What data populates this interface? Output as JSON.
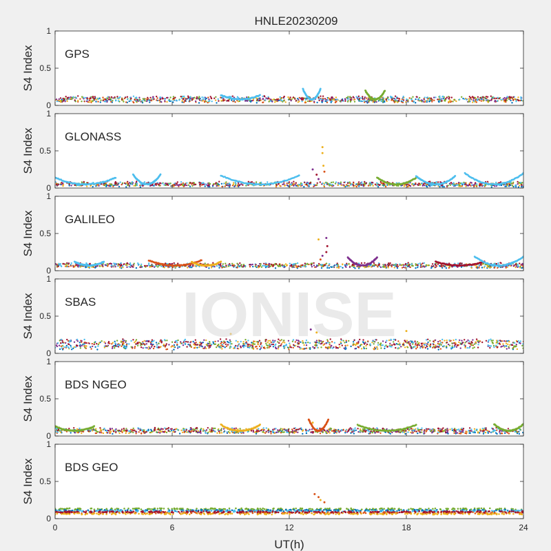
{
  "figure": {
    "title": "HNLE20230209",
    "watermark": "IONISE",
    "background_color": "#f0f0f0",
    "axes_color": "#ffffff"
  },
  "chart_data": {
    "type": "scatter",
    "xlabel": "UT(h)",
    "ylabel": "S4 Index",
    "xlim": [
      0,
      24
    ],
    "ylim": [
      0,
      1
    ],
    "xticks": [
      0,
      6,
      12,
      18,
      24
    ],
    "yticks": [
      0,
      0.5,
      1
    ],
    "ytick_labels": [
      "0",
      "0.5",
      "1"
    ],
    "grid": false,
    "palette": [
      "#0072BD",
      "#D95319",
      "#EDB120",
      "#7E2F8E",
      "#77AC30",
      "#4DBEEE",
      "#A2142F"
    ],
    "panels": [
      {
        "label": "GPS",
        "baseline": 0.08,
        "scatter": 0.035,
        "arcs": [
          {
            "series": 5,
            "x": [
              12.7,
              13.6
            ],
            "peak": 0.22
          },
          {
            "series": 4,
            "x": [
              15.9,
              16.9
            ],
            "peak": 0.2
          },
          {
            "series": 5,
            "x": [
              8.5,
              10.5
            ],
            "peak": 0.14
          }
        ],
        "spikes": []
      },
      {
        "label": "GLONASS",
        "baseline": 0.05,
        "scatter": 0.025,
        "arcs": [
          {
            "series": 5,
            "x": [
              0.0,
              3.1
            ],
            "peak": 0.14
          },
          {
            "series": 5,
            "x": [
              4.0,
              5.4
            ],
            "peak": 0.18
          },
          {
            "series": 5,
            "x": [
              8.5,
              12.5
            ],
            "peak": 0.17
          },
          {
            "series": 4,
            "x": [
              16.5,
              18.5
            ],
            "peak": 0.14
          },
          {
            "series": 5,
            "x": [
              18.5,
              20.5
            ],
            "peak": 0.16
          },
          {
            "series": 5,
            "x": [
              21.0,
              24.0
            ],
            "peak": 0.2
          }
        ],
        "spikes": [
          {
            "x": 13.7,
            "y": 0.55,
            "series": 2
          },
          {
            "x": 13.7,
            "y": 0.47,
            "series": 2
          },
          {
            "x": 13.75,
            "y": 0.3,
            "series": 2
          },
          {
            "x": 13.8,
            "y": 0.22,
            "series": 1
          },
          {
            "x": 13.2,
            "y": 0.25,
            "series": 3
          },
          {
            "x": 13.4,
            "y": 0.18,
            "series": 6
          },
          {
            "x": 13.5,
            "y": 0.12,
            "series": 3
          }
        ]
      },
      {
        "label": "GALILEO",
        "baseline": 0.07,
        "scatter": 0.025,
        "arcs": [
          {
            "series": 5,
            "x": [
              1.0,
              2.5
            ],
            "peak": 0.12
          },
          {
            "series": 1,
            "x": [
              4.8,
              7.5
            ],
            "peak": 0.14
          },
          {
            "series": 2,
            "x": [
              7.0,
              8.5
            ],
            "peak": 0.12
          },
          {
            "series": 3,
            "x": [
              15.0,
              16.5
            ],
            "peak": 0.18
          },
          {
            "series": 6,
            "x": [
              19.5,
              22.0
            ],
            "peak": 0.12
          },
          {
            "series": 5,
            "x": [
              21.5,
              24.0
            ],
            "peak": 0.19
          }
        ],
        "spikes": [
          {
            "x": 13.5,
            "y": 0.42,
            "series": 2
          },
          {
            "x": 13.9,
            "y": 0.44,
            "series": 3
          },
          {
            "x": 13.95,
            "y": 0.33,
            "series": 6
          },
          {
            "x": 13.9,
            "y": 0.25,
            "series": 6
          },
          {
            "x": 13.7,
            "y": 0.2,
            "series": 3
          },
          {
            "x": 13.6,
            "y": 0.15,
            "series": 1
          }
        ]
      },
      {
        "label": "SBAS",
        "baseline": 0.12,
        "scatter": 0.06,
        "arcs": [],
        "spikes": [
          {
            "x": 13.1,
            "y": 0.32,
            "series": 3
          },
          {
            "x": 13.4,
            "y": 0.28,
            "series": 2
          },
          {
            "x": 18.0,
            "y": 0.3,
            "series": 2
          },
          {
            "x": 9.0,
            "y": 0.26,
            "series": 2
          }
        ]
      },
      {
        "label": "BDS NGEO",
        "baseline": 0.07,
        "scatter": 0.03,
        "arcs": [
          {
            "series": 4,
            "x": [
              0.0,
              2.0
            ],
            "peak": 0.13
          },
          {
            "series": 2,
            "x": [
              8.5,
              10.5
            ],
            "peak": 0.15
          },
          {
            "series": 1,
            "x": [
              13.0,
              14.0
            ],
            "peak": 0.22
          },
          {
            "series": 4,
            "x": [
              15.5,
              18.5
            ],
            "peak": 0.15
          },
          {
            "series": 4,
            "x": [
              22.5,
              24.0
            ],
            "peak": 0.16
          }
        ],
        "spikes": [
          {
            "x": 13.0,
            "y": 0.22,
            "series": 1
          },
          {
            "x": 13.2,
            "y": 0.18,
            "series": 2
          }
        ]
      },
      {
        "label": "BDS GEO",
        "baseline": 0.1,
        "scatter": 0.02,
        "arcs": [],
        "bands": [
          {
            "series": 4,
            "y": 0.13
          },
          {
            "series": 0,
            "y": 0.11
          },
          {
            "series": 5,
            "y": 0.1
          },
          {
            "series": 1,
            "y": 0.08
          },
          {
            "series": 2,
            "y": 0.065
          },
          {
            "series": 6,
            "y": 0.09
          }
        ],
        "spikes": [
          {
            "x": 13.3,
            "y": 0.33,
            "series": 1
          },
          {
            "x": 13.5,
            "y": 0.29,
            "series": 1
          },
          {
            "x": 13.6,
            "y": 0.25,
            "series": 2
          },
          {
            "x": 13.8,
            "y": 0.22,
            "series": 1
          }
        ]
      }
    ]
  }
}
